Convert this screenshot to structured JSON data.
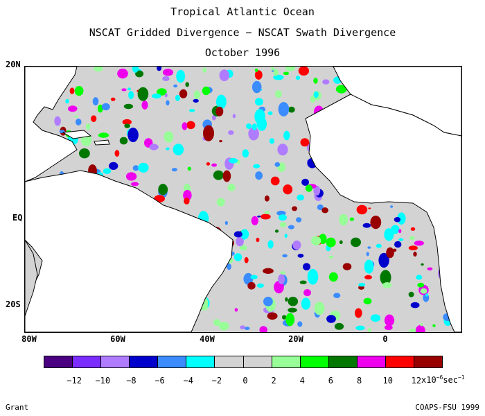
{
  "title_lines": [
    "Tropical Atlantic Ocean",
    "NSCAT Gridded Divergence − NSCAT Swath Divergence",
    "October 1996"
  ],
  "lat_labels": [
    "20N",
    "EQ",
    "20S"
  ],
  "lon_labels": [
    "80W",
    "60W",
    "40W",
    "20W",
    "0"
  ],
  "colorbar": {
    "colors": [
      "#4b0082",
      "#7b2cff",
      "#b07cff",
      "#0000cd",
      "#3a8cff",
      "#00ffff",
      "#d3d3d3",
      "#d3d3d3",
      "#98ff98",
      "#00ff00",
      "#007800",
      "#ee00ee",
      "#ff0000",
      "#990000"
    ],
    "labels": [
      "−12",
      "−10",
      "−8",
      "−6",
      "−4",
      "−2",
      "0",
      "2",
      "4",
      "6",
      "8",
      "10",
      "12"
    ],
    "units_base": "x10",
    "units_exp": "−6",
    "units_tail": "sec",
    "units_tail_exp": "−1"
  },
  "footer_left": "Grant",
  "footer_right": "COAPS-FSU 1999"
}
